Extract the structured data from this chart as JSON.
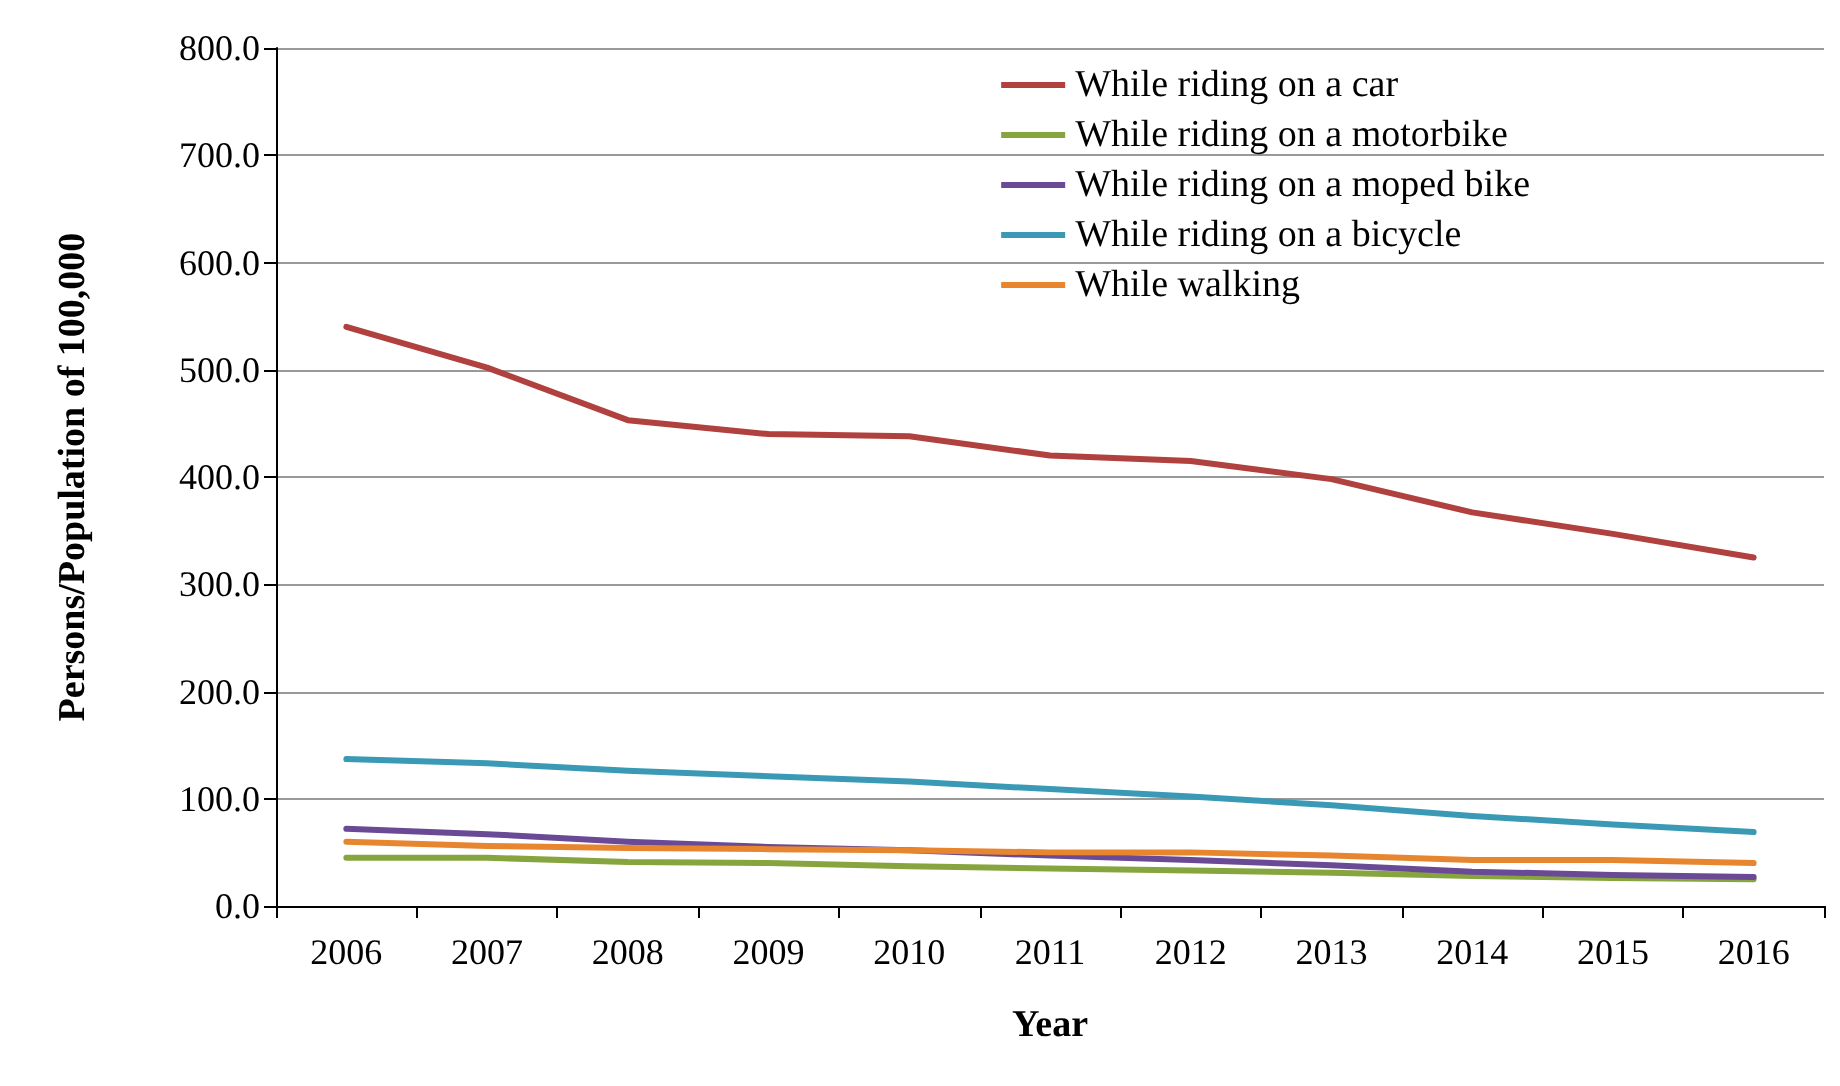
{
  "chart_data": {
    "type": "line",
    "xlabel": "Year",
    "ylabel": "Persons/Population of 100,000",
    "categories": [
      "2006",
      "2007",
      "2008",
      "2009",
      "2010",
      "2011",
      "2012",
      "2013",
      "2014",
      "2015",
      "2016"
    ],
    "series": [
      {
        "name": "While riding on a car",
        "color": "#b0413e",
        "values": [
          540,
          502,
          453,
          440,
          438,
          420,
          415,
          398,
          367,
          347,
          325
        ]
      },
      {
        "name": "While riding on a motorbike",
        "color": "#86a53f",
        "values": [
          45,
          45,
          41,
          40,
          37,
          35,
          33,
          31,
          28,
          26,
          25
        ]
      },
      {
        "name": "While riding on a moped bike",
        "color": "#6a4a94",
        "values": [
          72,
          67,
          60,
          55,
          52,
          47,
          43,
          38,
          32,
          29,
          27
        ]
      },
      {
        "name": "While riding on a bicycle",
        "color": "#3a9ab5",
        "values": [
          137,
          133,
          126,
          121,
          116,
          109,
          102,
          94,
          84,
          76,
          69
        ]
      },
      {
        "name": "While walking",
        "color": "#e8862f",
        "values": [
          60,
          56,
          54,
          53,
          52,
          50,
          50,
          47,
          43,
          43,
          40
        ]
      }
    ],
    "ylim": [
      0,
      800
    ],
    "yticks": [
      {
        "value": 0,
        "label": "0.0"
      },
      {
        "value": 100,
        "label": "100.0"
      },
      {
        "value": 200,
        "label": "200.0"
      },
      {
        "value": 300,
        "label": "300.0"
      },
      {
        "value": 400,
        "label": "400.0"
      },
      {
        "value": 500,
        "label": "500.0"
      },
      {
        "value": 600,
        "label": "600.0"
      },
      {
        "value": 700,
        "label": "700.0"
      },
      {
        "value": 800,
        "label": "800.0"
      }
    ],
    "grid": "y",
    "legend": "top right",
    "marker": "none",
    "line_style": "solid"
  }
}
